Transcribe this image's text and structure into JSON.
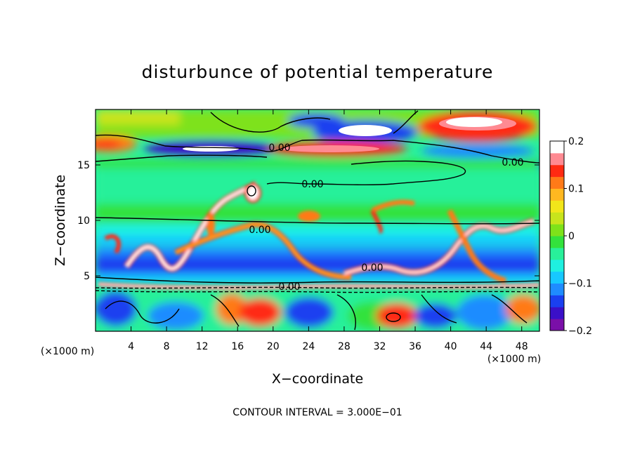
{
  "chart_data": {
    "type": "heatmap",
    "title": "disturbunce of potential temperature",
    "xlabel": "X−coordinate",
    "ylabel": "Z−coordinate",
    "x_unit": "(×1000 m)",
    "xlim": [
      0,
      50
    ],
    "ylim": [
      0,
      20
    ],
    "x_ticks": [
      4,
      8,
      12,
      16,
      20,
      24,
      28,
      32,
      36,
      40,
      44,
      48
    ],
    "x_tick_labels": [
      "4",
      "8",
      "12",
      "16",
      "20",
      "24",
      "28",
      "32",
      "36",
      "40",
      "44",
      "48"
    ],
    "y_ticks": [
      5,
      10,
      15
    ],
    "y_tick_labels": [
      "5",
      "10",
      "15"
    ],
    "colorbar": {
      "range": [
        -0.2,
        0.2
      ],
      "ticks": [
        0.2,
        0.1,
        0,
        -0.1,
        -0.2
      ],
      "tick_labels": [
        "0.2",
        "0.1",
        "0",
        "−0.1",
        "−0.2"
      ],
      "colors": [
        "#7a0fa8",
        "#3a10c8",
        "#1a40f0",
        "#1f8cff",
        "#17c8ff",
        "#1ff0e0",
        "#28f09a",
        "#33e23c",
        "#7ee21a",
        "#c8e41c",
        "#f2e61a",
        "#ffb820",
        "#ff7a18",
        "#ff2a12",
        "#ff8a92",
        "#ffffff"
      ]
    },
    "contour_labels": [
      "0.00",
      "0.00",
      "0.00",
      "0.00",
      "0.00",
      "0.00"
    ],
    "footer": "CONTOUR INTERVAL = 3.000E−01"
  }
}
